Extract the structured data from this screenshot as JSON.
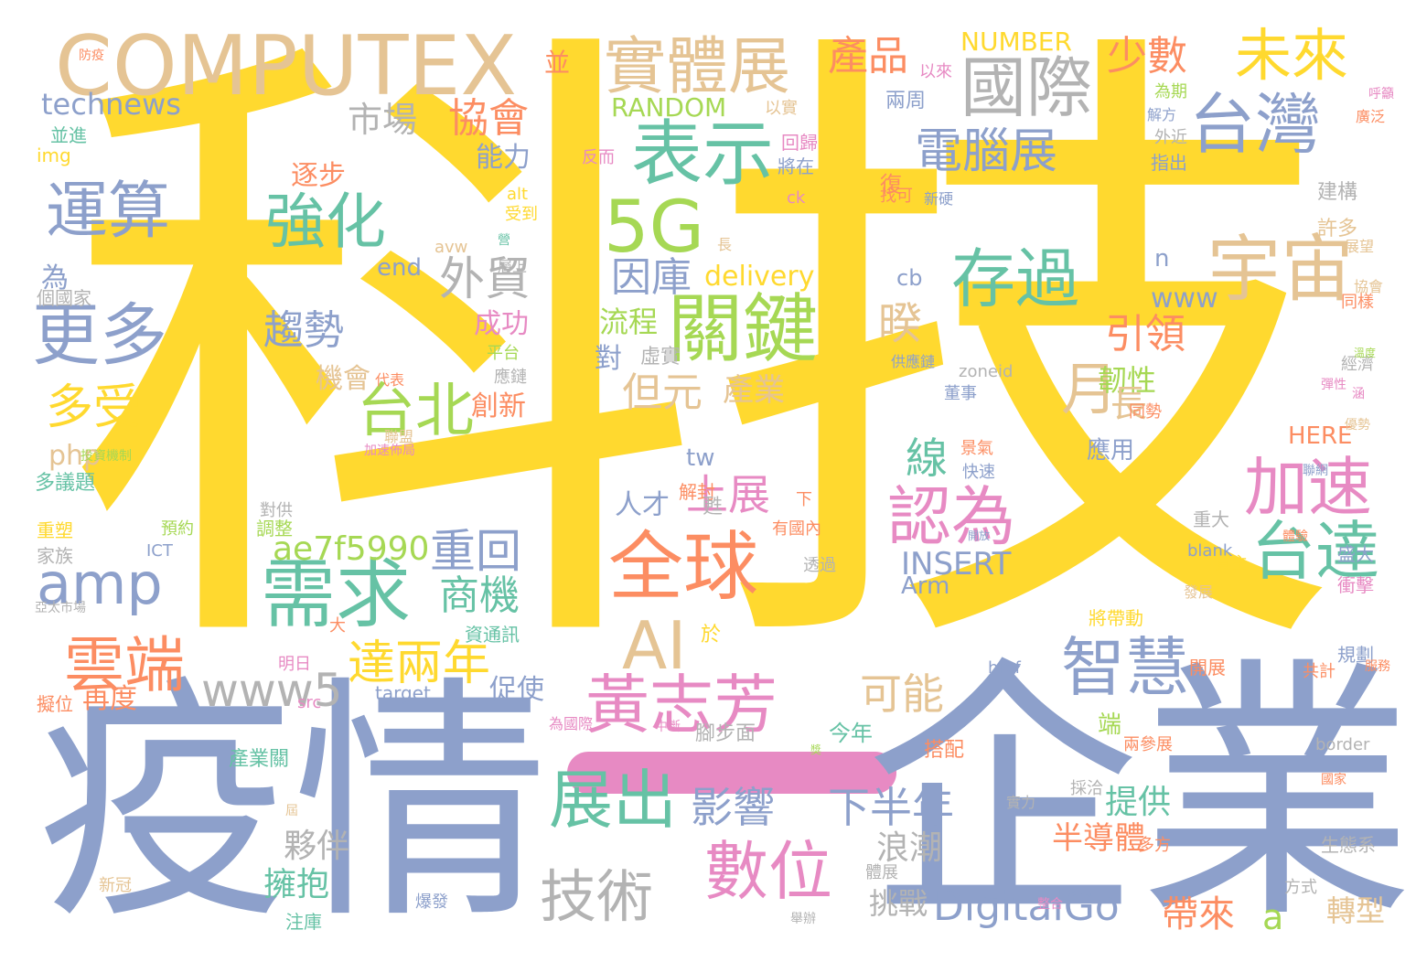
{
  "palette": {
    "yellow": "#ffd92f",
    "periwinkle": "#8da0cb",
    "green": "#66c2a5",
    "orange": "#fc8d62",
    "pink": "#e78ac3",
    "lime": "#a6d854",
    "tan": "#e5c494",
    "gray": "#b3b3b3"
  },
  "words": [
    {
      "text": "科技",
      "color": "#ffd92f"
    },
    {
      "text": "疫情",
      "color": "#8da0cb"
    },
    {
      "text": "企業",
      "color": "#8da0cb"
    },
    {
      "text": "COMPUTEX",
      "color": "#e5c494"
    },
    {
      "text": "實體展",
      "color": "#e5c494"
    },
    {
      "text": "國際",
      "color": "#b3b3b3"
    },
    {
      "text": "未來",
      "color": "#ffd92f"
    },
    {
      "text": "台灣",
      "color": "#8da0cb"
    },
    {
      "text": "表示",
      "color": "#66c2a5"
    },
    {
      "text": "電腦展",
      "color": "#8da0cb"
    },
    {
      "text": "產品",
      "color": "#fc8d62"
    },
    {
      "text": "少數",
      "color": "#fc8d62"
    },
    {
      "text": "NUMBER",
      "color": "#ffd92f"
    },
    {
      "text": "RANDOM",
      "color": "#a6d854"
    },
    {
      "text": "協會",
      "color": "#fc8d62"
    },
    {
      "text": "市場",
      "color": "#b3b3b3"
    },
    {
      "text": "technews",
      "color": "#8da0cb"
    },
    {
      "text": "運算",
      "color": "#8da0cb"
    },
    {
      "text": "強化",
      "color": "#66c2a5"
    },
    {
      "text": "5G",
      "color": "#a6d854"
    },
    {
      "text": "存過",
      "color": "#66c2a5"
    },
    {
      "text": "宇宙",
      "color": "#e5c494"
    },
    {
      "text": "更多",
      "color": "#8da0cb"
    },
    {
      "text": "外貿",
      "color": "#b3b3b3"
    },
    {
      "text": "因庫",
      "color": "#8da0cb"
    },
    {
      "text": "delivery",
      "color": "#ffd92f"
    },
    {
      "text": "關鍵",
      "color": "#a6d854"
    },
    {
      "text": "趨勢",
      "color": "#8da0cb"
    },
    {
      "text": "流程",
      "color": "#a6d854"
    },
    {
      "text": "暌",
      "color": "#e5c494"
    },
    {
      "text": "引領",
      "color": "#fc8d62"
    },
    {
      "text": "月",
      "color": "#e5c494"
    },
    {
      "text": "韌性",
      "color": "#a6d854"
    },
    {
      "text": "長",
      "color": "#e5c494"
    },
    {
      "text": "台北",
      "color": "#a6d854"
    },
    {
      "text": "但元",
      "color": "#e5c494"
    },
    {
      "text": "產業",
      "color": "#e5c494"
    },
    {
      "text": "多受",
      "color": "#ffd92f"
    },
    {
      "text": "amp",
      "color": "#8da0cb"
    },
    {
      "text": "需求",
      "color": "#66c2a5"
    },
    {
      "text": "全球",
      "color": "#fc8d62"
    },
    {
      "text": "AI",
      "color": "#e5c494"
    },
    {
      "text": "加速",
      "color": "#e78ac3"
    },
    {
      "text": "認為",
      "color": "#e78ac3"
    },
    {
      "text": "台達",
      "color": "#66c2a5"
    },
    {
      "text": "線",
      "color": "#66c2a5"
    },
    {
      "text": "上展",
      "color": "#e78ac3"
    },
    {
      "text": "重回",
      "color": "#8da0cb"
    },
    {
      "text": "商機",
      "color": "#66c2a5"
    },
    {
      "text": "雲端",
      "color": "#fc8d62"
    },
    {
      "text": "達兩年",
      "color": "#ffd92f"
    },
    {
      "text": "www5",
      "color": "#b3b3b3"
    },
    {
      "text": "黃志芳",
      "color": "#e78ac3"
    },
    {
      "text": "可能",
      "color": "#e5c494"
    },
    {
      "text": "智慧",
      "color": "#8da0cb"
    },
    {
      "text": "ae7f5990",
      "color": "#a6d854"
    },
    {
      "text": "INSERT",
      "color": "#8da0cb"
    },
    {
      "text": "展出",
      "color": "#66c2a5"
    },
    {
      "text": "數位",
      "color": "#e78ac3"
    },
    {
      "text": "技術",
      "color": "#b3b3b3"
    },
    {
      "text": "影響",
      "color": "#8da0cb"
    },
    {
      "text": "下半年",
      "color": "#8da0cb"
    },
    {
      "text": "DigitalGo",
      "color": "#8da0cb"
    },
    {
      "text": "a",
      "color": "#a6d854"
    },
    {
      "text": "半導體",
      "color": "#fc8d62"
    },
    {
      "text": "提供",
      "color": "#66c2a5"
    },
    {
      "text": "浪潮",
      "color": "#b3b3b3"
    },
    {
      "text": "夥伴",
      "color": "#b3b3b3"
    },
    {
      "text": "擁抱",
      "color": "#66c2a5"
    },
    {
      "text": "挑戰",
      "color": "#b3b3b3"
    },
    {
      "text": "帶來",
      "color": "#fc8d62"
    },
    {
      "text": "轉型",
      "color": "#e5c494"
    },
    {
      "text": "www",
      "color": "#8da0cb"
    },
    {
      "text": "end",
      "color": "#8da0cb"
    },
    {
      "text": "php",
      "color": "#e5c494"
    },
    {
      "text": "tw",
      "color": "#8da0cb"
    },
    {
      "text": "cb",
      "color": "#8da0cb"
    },
    {
      "text": "n",
      "color": "#8da0cb"
    },
    {
      "text": "HERE",
      "color": "#fc8d62"
    },
    {
      "text": "Arm",
      "color": "#8da0cb"
    },
    {
      "text": "img",
      "color": "#ffd92f"
    },
    {
      "text": "alt",
      "color": "#ffd92f"
    },
    {
      "text": "ck",
      "color": "#e78ac3"
    },
    {
      "text": "avw",
      "color": "#e5c494"
    },
    {
      "text": "zoneid",
      "color": "#b3b3b3"
    },
    {
      "text": "blank",
      "color": "#8da0cb"
    },
    {
      "text": "ICT",
      "color": "#8da0cb"
    },
    {
      "text": "href",
      "color": "#8da0cb"
    },
    {
      "text": "target",
      "color": "#8da0cb"
    },
    {
      "text": "src",
      "color": "#e78ac3"
    },
    {
      "text": "border",
      "color": "#b3b3b3"
    },
    {
      "text": "並",
      "color": "#fc8d62"
    },
    {
      "text": "以來",
      "color": "#e78ac3"
    },
    {
      "text": "以實",
      "color": "#e5c494"
    },
    {
      "text": "能力",
      "color": "#8da0cb"
    },
    {
      "text": "逐步",
      "color": "#fc8d62"
    },
    {
      "text": "成功",
      "color": "#e78ac3"
    },
    {
      "text": "對",
      "color": "#8da0cb"
    },
    {
      "text": "虛實",
      "color": "#b3b3b3"
    },
    {
      "text": "機會",
      "color": "#e5c494"
    },
    {
      "text": "創新",
      "color": "#fc8d62"
    },
    {
      "text": "為",
      "color": "#8da0cb"
    },
    {
      "text": "人才",
      "color": "#8da0cb"
    },
    {
      "text": "促使",
      "color": "#8da0cb"
    },
    {
      "text": "再度",
      "color": "#fc8d62"
    },
    {
      "text": "今年",
      "color": "#66c2a5"
    },
    {
      "text": "搭配",
      "color": "#fc8d62"
    },
    {
      "text": "於",
      "color": "#ffd92f"
    },
    {
      "text": "並進",
      "color": "#66c2a5"
    },
    {
      "text": "多議題",
      "color": "#66c2a5"
    },
    {
      "text": "建構",
      "color": "#b3b3b3"
    },
    {
      "text": "許多",
      "color": "#e5c494"
    },
    {
      "text": "兩周",
      "color": "#8da0cb"
    },
    {
      "text": "回歸",
      "color": "#e78ac3"
    },
    {
      "text": "將在",
      "color": "#8da0cb"
    },
    {
      "text": "指出",
      "color": "#8da0cb"
    },
    {
      "text": "外近",
      "color": "#b3b3b3"
    },
    {
      "text": "為期",
      "color": "#a6d854"
    },
    {
      "text": "董事",
      "color": "#8da0cb"
    },
    {
      "text": "應用",
      "color": "#8da0cb"
    },
    {
      "text": "端",
      "color": "#a6d854"
    },
    {
      "text": "開展",
      "color": "#fc8d62"
    },
    {
      "text": "規劃",
      "color": "#8da0cb"
    },
    {
      "text": "衝擊",
      "color": "#e78ac3"
    },
    {
      "text": "盛大",
      "color": "#8da0cb"
    },
    {
      "text": "重大",
      "color": "#b3b3b3"
    },
    {
      "text": "同勢",
      "color": "#fc8d62"
    },
    {
      "text": "經濟",
      "color": "#b3b3b3"
    },
    {
      "text": "同樣",
      "color": "#fc8d62"
    },
    {
      "text": "展望",
      "color": "#e5c494"
    },
    {
      "text": "生態系",
      "color": "#b3b3b3"
    },
    {
      "text": "方式",
      "color": "#b3b3b3"
    },
    {
      "text": "多方",
      "color": "#fc8d62"
    },
    {
      "text": "快速",
      "color": "#8da0cb"
    },
    {
      "text": "透過",
      "color": "#b3b3b3"
    },
    {
      "text": "調整",
      "color": "#a6d854"
    },
    {
      "text": "對供",
      "color": "#b3b3b3"
    },
    {
      "text": "產業關",
      "color": "#66c2a5"
    },
    {
      "text": "注庫",
      "color": "#66c2a5"
    },
    {
      "text": "家族",
      "color": "#b3b3b3"
    },
    {
      "text": "重塑",
      "color": "#ffd92f"
    },
    {
      "text": "新冠",
      "color": "#e5c494"
    },
    {
      "text": "體展",
      "color": "#b3b3b3"
    },
    {
      "text": "明日",
      "color": "#e78ac3"
    },
    {
      "text": "擬位",
      "color": "#fc8d62"
    },
    {
      "text": "預約",
      "color": "#a6d854"
    },
    {
      "text": "資通訊",
      "color": "#66c2a5"
    },
    {
      "text": "腳步面",
      "color": "#b3b3b3"
    },
    {
      "text": "解封",
      "color": "#fc8d62"
    },
    {
      "text": "平台",
      "color": "#a6d854"
    },
    {
      "text": "應鏈",
      "color": "#b3b3b3"
    },
    {
      "text": "受到",
      "color": "#ffd92f"
    },
    {
      "text": "復",
      "color": "#fc8d62"
    },
    {
      "text": "反而",
      "color": "#e78ac3"
    },
    {
      "text": "找可",
      "color": "#fc8d62"
    },
    {
      "text": "爆發",
      "color": "#8da0cb"
    },
    {
      "text": "將帶動",
      "color": "#ffd92f"
    },
    {
      "text": "兩參展",
      "color": "#fc8d62"
    },
    {
      "text": "共計",
      "color": "#fc8d62"
    },
    {
      "text": "有國內",
      "color": "#fc8d62"
    },
    {
      "text": "採洽",
      "color": "#b3b3b3"
    },
    {
      "text": "下",
      "color": "#fc8d62"
    },
    {
      "text": "甦",
      "color": "#b3b3b3"
    },
    {
      "text": "景氣",
      "color": "#fc8d62"
    },
    {
      "text": "實力",
      "color": "#b3b3b3"
    },
    {
      "text": "買主",
      "color": "#ffd92f"
    },
    {
      "text": "為國際",
      "color": "#e78ac3"
    },
    {
      "text": "中斷",
      "color": "#e78ac3"
    },
    {
      "text": "舉辦",
      "color": "#b3b3b3"
    },
    {
      "text": "協會",
      "color": "#e5c494"
    },
    {
      "text": "防疫",
      "color": "#fc8d62"
    },
    {
      "text": "個國家",
      "color": "#b3b3b3"
    },
    {
      "text": "代表",
      "color": "#fc8d62"
    },
    {
      "text": "供應鏈",
      "color": "#8da0cb"
    },
    {
      "text": "新硬",
      "color": "#8da0cb"
    },
    {
      "text": "長",
      "color": "#e5c494"
    },
    {
      "text": "解方",
      "color": "#8da0cb"
    },
    {
      "text": "呼籲",
      "color": "#e78ac3"
    },
    {
      "text": "廣泛",
      "color": "#fc8d62"
    },
    {
      "text": "彈性",
      "color": "#e78ac3"
    },
    {
      "text": "涵",
      "color": "#e78ac3"
    },
    {
      "text": "溫度",
      "color": "#a6d854"
    },
    {
      "text": "優勢",
      "color": "#e5c494"
    },
    {
      "text": "投資機制",
      "color": "#a6d854"
    },
    {
      "text": "加速佈局",
      "color": "#e78ac3"
    },
    {
      "text": "亞太市場",
      "color": "#b3b3b3"
    },
    {
      "text": "營",
      "color": "#66c2a5"
    },
    {
      "text": "聯盟",
      "color": "#e5c494"
    },
    {
      "text": "體驗",
      "color": "#fc8d62"
    },
    {
      "text": "開放",
      "color": "#8da0cb"
    },
    {
      "text": "屆",
      "color": "#e5c494"
    },
    {
      "text": "大",
      "color": "#fc8d62"
    },
    {
      "text": "獎",
      "color": "#a6d854"
    },
    {
      "text": "層上",
      "color": "#b3b3b3"
    },
    {
      "text": "整合",
      "color": "#e78ac3"
    },
    {
      "text": "服務",
      "color": "#fc8d62"
    },
    {
      "text": "聯網",
      "color": "#8da0cb"
    },
    {
      "text": "國家",
      "color": "#fc8d62"
    },
    {
      "text": "發展",
      "color": "#e5c494"
    }
  ]
}
